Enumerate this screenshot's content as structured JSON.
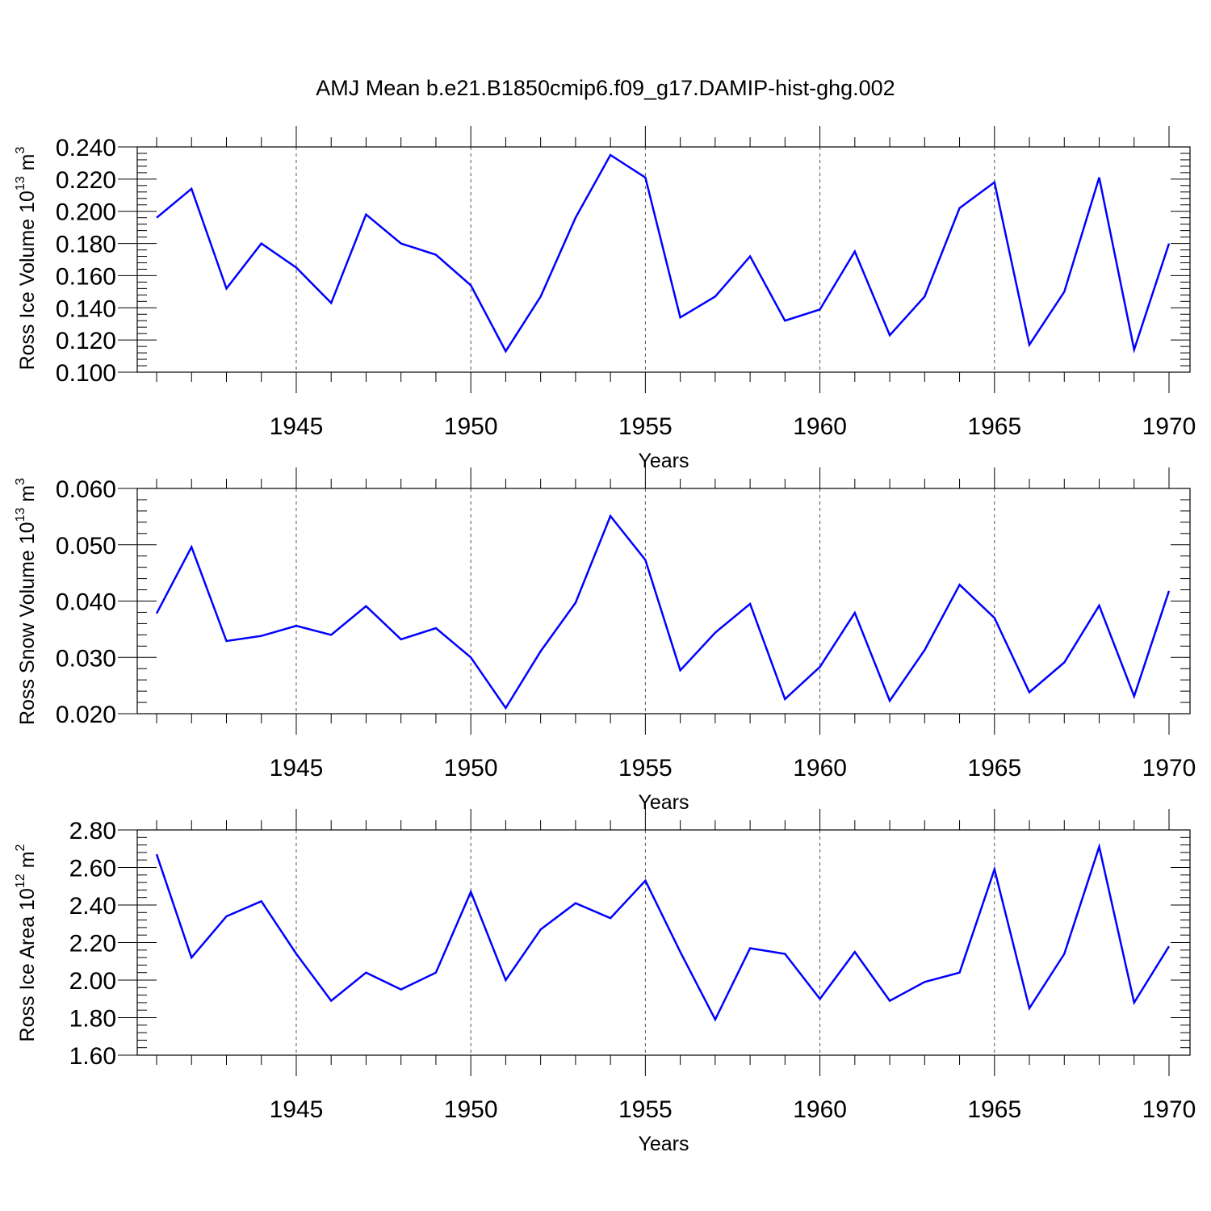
{
  "figure": {
    "title": "AMJ Mean b.e21.B1850cmip6.f09_g17.DAMIP-hist-ghg.002",
    "line_color": "#0000ff"
  },
  "chart_data": [
    {
      "type": "line",
      "title": "",
      "xlabel": "Years",
      "ylabel": {
        "text": "Ross Ice Volume 10",
        "exponent": "13",
        "unit": "m",
        "unit_exponent": "3"
      },
      "xlim": [
        1941,
        1970
      ],
      "ylim": [
        0.1,
        0.24
      ],
      "grid": "vertical dashed at major x ticks",
      "x_ticks": [
        1945,
        1950,
        1955,
        1960,
        1965,
        1970
      ],
      "x_tick_labels": [
        "1945",
        "1950",
        "1955",
        "1960",
        "1965",
        "1970"
      ],
      "y_ticks": [
        0.1,
        0.12,
        0.14,
        0.16,
        0.18,
        0.2,
        0.22,
        0.24
      ],
      "y_tick_labels": [
        "0.100",
        "0.120",
        "0.140",
        "0.160",
        "0.180",
        "0.200",
        "0.220",
        "0.240"
      ],
      "series": [
        {
          "x": [
            1941,
            1942,
            1943,
            1944,
            1945,
            1946,
            1947,
            1948,
            1949,
            1950,
            1951,
            1952,
            1953,
            1954,
            1955,
            1956,
            1957,
            1958,
            1959,
            1960,
            1961,
            1962,
            1963,
            1964,
            1965,
            1966,
            1967,
            1968,
            1969,
            1970
          ],
          "values": [
            0.196,
            0.214,
            0.152,
            0.18,
            0.165,
            0.143,
            0.198,
            0.18,
            0.173,
            0.154,
            0.113,
            0.147,
            0.196,
            0.235,
            0.221,
            0.134,
            0.147,
            0.172,
            0.132,
            0.139,
            0.175,
            0.123,
            0.147,
            0.202,
            0.218,
            0.117,
            0.15,
            0.221,
            0.114,
            0.18
          ]
        }
      ]
    },
    {
      "type": "line",
      "title": "",
      "xlabel": "Years",
      "ylabel": {
        "text": "Ross Snow Volume 10",
        "exponent": "13",
        "unit": "m",
        "unit_exponent": "3"
      },
      "xlim": [
        1941,
        1970
      ],
      "ylim": [
        0.02,
        0.06
      ],
      "grid": "vertical dashed at major x ticks",
      "x_ticks": [
        1945,
        1950,
        1955,
        1960,
        1965,
        1970
      ],
      "x_tick_labels": [
        "1945",
        "1950",
        "1955",
        "1960",
        "1965",
        "1970"
      ],
      "y_ticks": [
        0.02,
        0.03,
        0.04,
        0.05,
        0.06
      ],
      "y_tick_labels": [
        "0.020",
        "0.030",
        "0.040",
        "0.050",
        "0.060"
      ],
      "series": [
        {
          "x": [
            1941,
            1942,
            1943,
            1944,
            1945,
            1946,
            1947,
            1948,
            1949,
            1950,
            1951,
            1952,
            1953,
            1954,
            1955,
            1956,
            1957,
            1958,
            1959,
            1960,
            1961,
            1962,
            1963,
            1964,
            1965,
            1966,
            1967,
            1968,
            1969,
            1970
          ],
          "values": [
            0.0378,
            0.0496,
            0.0329,
            0.0338,
            0.0356,
            0.034,
            0.0391,
            0.0332,
            0.0352,
            0.03,
            0.021,
            0.0311,
            0.0397,
            0.0551,
            0.0473,
            0.0277,
            0.0344,
            0.0395,
            0.0226,
            0.0283,
            0.0379,
            0.0223,
            0.0313,
            0.0429,
            0.037,
            0.0238,
            0.0291,
            0.0392,
            0.0231,
            0.0418
          ]
        }
      ]
    },
    {
      "type": "line",
      "title": "",
      "xlabel": "Years",
      "ylabel": {
        "text": "Ross Ice Area 10",
        "exponent": "12",
        "unit": "m",
        "unit_exponent": "2"
      },
      "xlim": [
        1941,
        1970
      ],
      "ylim": [
        1.6,
        2.8
      ],
      "grid": "vertical dashed at major x ticks",
      "x_ticks": [
        1945,
        1950,
        1955,
        1960,
        1965,
        1970
      ],
      "x_tick_labels": [
        "1945",
        "1950",
        "1955",
        "1960",
        "1965",
        "1970"
      ],
      "y_ticks": [
        1.6,
        1.8,
        2.0,
        2.2,
        2.4,
        2.6,
        2.8
      ],
      "y_tick_labels": [
        "1.60",
        "1.80",
        "2.00",
        "2.20",
        "2.40",
        "2.60",
        "2.80"
      ],
      "series": [
        {
          "x": [
            1941,
            1942,
            1943,
            1944,
            1945,
            1946,
            1947,
            1948,
            1949,
            1950,
            1951,
            1952,
            1953,
            1954,
            1955,
            1956,
            1957,
            1958,
            1959,
            1960,
            1961,
            1962,
            1963,
            1964,
            1965,
            1966,
            1967,
            1968,
            1969,
            1970
          ],
          "values": [
            2.67,
            2.12,
            2.34,
            2.42,
            2.14,
            1.89,
            2.04,
            1.95,
            2.04,
            2.47,
            2.0,
            2.27,
            2.41,
            2.33,
            2.53,
            2.15,
            1.79,
            2.17,
            2.14,
            1.9,
            2.15,
            1.89,
            1.99,
            2.04,
            2.59,
            1.85,
            2.14,
            2.71,
            1.88,
            2.18
          ]
        }
      ]
    }
  ]
}
